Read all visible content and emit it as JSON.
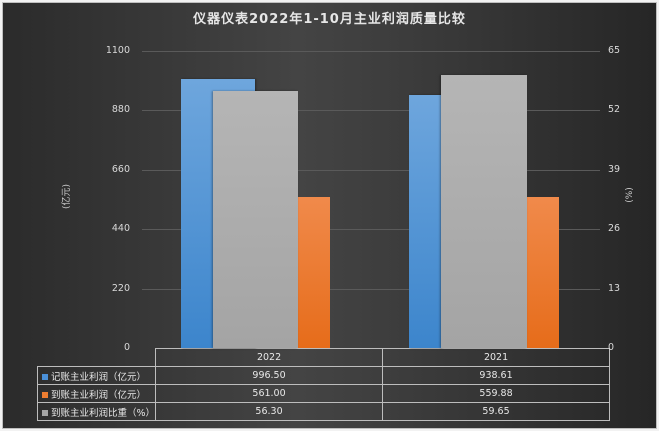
{
  "chart_data": {
    "type": "bar",
    "title": "仪器仪表2022年1-10月主业利润质量比较",
    "categories": [
      "2022",
      "2021"
    ],
    "series": [
      {
        "name": "记账主业利润（亿元）",
        "axis": "left",
        "color": "#4a90d9",
        "values": [
          996.5,
          938.61
        ]
      },
      {
        "name": "到账主业利润（亿元）",
        "axis": "left",
        "color": "#ed7d31",
        "values": [
          561.0,
          559.88
        ]
      },
      {
        "name": "到账主业利润比重（%）",
        "axis": "right",
        "color": "#a5a5a5",
        "values": [
          56.3,
          59.65
        ]
      }
    ],
    "ylabel": "(亿元)",
    "ylabel_right": "(%)",
    "ylim": [
      0,
      1100
    ],
    "ylim_right": [
      0,
      65
    ],
    "yticks": [
      "0",
      "220",
      "440",
      "660",
      "880",
      "1100"
    ],
    "yticks_right": [
      "0",
      "13",
      "26",
      "39",
      "52",
      "65"
    ],
    "grid": true,
    "legend_position": "data-table"
  },
  "table": {
    "headers": [
      "2022",
      "2021"
    ],
    "rows": [
      {
        "label": "记账主业利润（亿元）",
        "values": [
          "996.50",
          "938.61"
        ],
        "color": "#4a90d9"
      },
      {
        "label": "到账主业利润（亿元）",
        "values": [
          "561.00",
          "559.88"
        ],
        "color": "#ed7d31"
      },
      {
        "label": "到账主业利润比重（%）",
        "values": [
          "56.30",
          "59.65"
        ],
        "color": "#a5a5a5"
      }
    ]
  }
}
